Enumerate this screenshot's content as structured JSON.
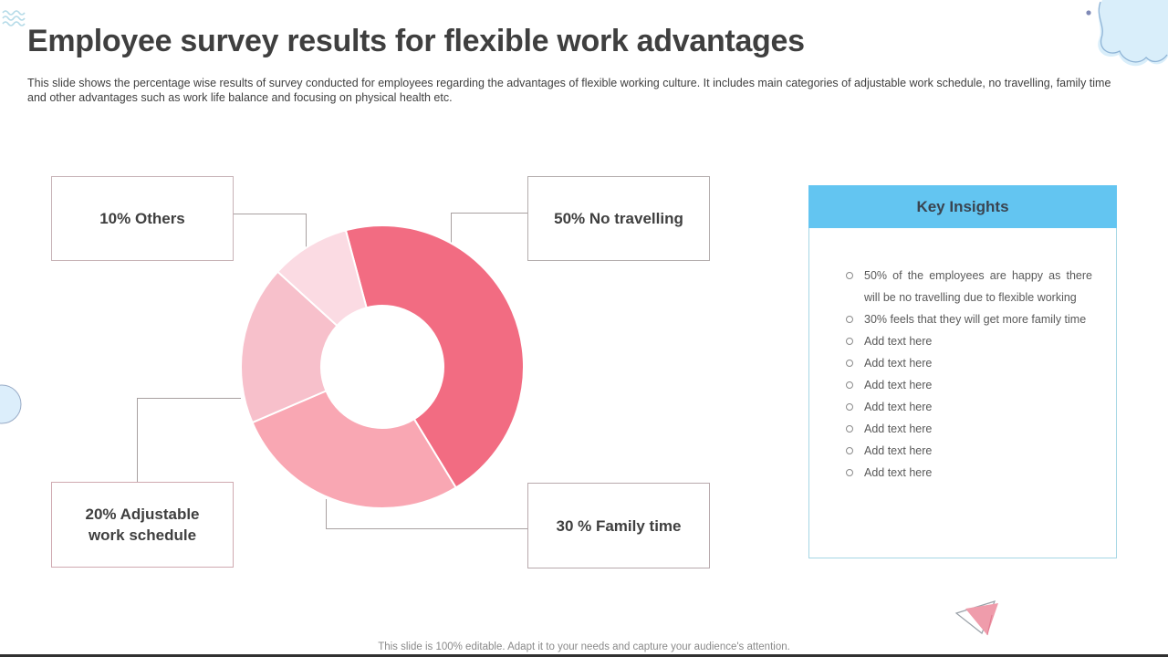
{
  "slide": {
    "title": "Employee survey results for flexible work advantages",
    "description": "This slide shows the percentage wise results of survey conducted for employees regarding the advantages of flexible working culture. It includes main categories of adjustable work schedule, no travelling, family time and other advantages such as work life balance and focusing on physical health etc.",
    "footer": "This slide is 100% editable. Adapt it to your needs and capture your audience's attention."
  },
  "callouts": [
    {
      "label": "10% Others"
    },
    {
      "label": "50% No travelling"
    },
    {
      "label": "20% Adjustable work schedule"
    },
    {
      "label": "30 % Family time"
    }
  ],
  "chart_data": {
    "type": "pie",
    "subtype": "donut",
    "labels": [
      "No travelling",
      "Family time",
      "Adjustable work schedule",
      "Others"
    ],
    "values": [
      50,
      30,
      20,
      10
    ],
    "colors": [
      "#f26c82",
      "#f9a7b3",
      "#f7c0cb",
      "#fbdbe3"
    ],
    "start_angle_deg": -15,
    "inner_radius_ratio": 0.43,
    "legend": "none",
    "callout_labels": [
      "50% No travelling",
      "30 % Family time",
      "20% Adjustable work schedule",
      "10% Others"
    ]
  },
  "insights": {
    "title": "Key Insights",
    "header_bg": "#63c5f1",
    "items": [
      "50% of the employees are happy as there will be no travelling due to flexible working",
      "30% feels that they will get more family time",
      "Add text here",
      "Add text here",
      "Add text here",
      "Add text here",
      "Add text here",
      "Add text here",
      "Add text here"
    ]
  },
  "colors": {
    "accent_blue": "#63c5f1",
    "panel_border": "#a5d6e4",
    "connector_gray": "#a8a0a0",
    "title_text": "#3f3f3f",
    "body_text": "#595959"
  }
}
